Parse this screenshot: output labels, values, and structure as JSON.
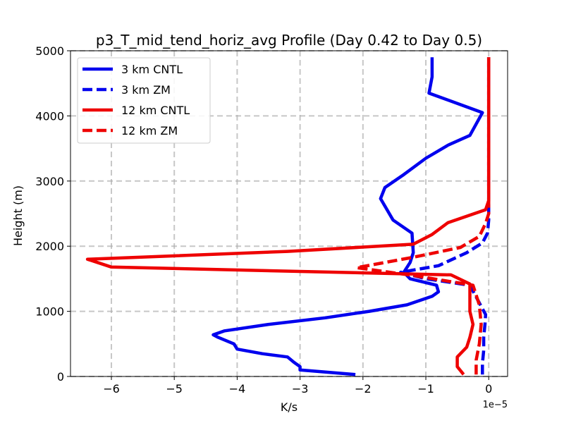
{
  "chart_data": {
    "type": "line",
    "title": "p3_T_mid_tend_horiz_avg Profile (Day 0.42 to Day 0.5)",
    "xlabel": "K/s",
    "ylabel": "Height (m)",
    "x_offset_label": "1e−5",
    "x_scale": 1e-05,
    "xlim": [
      -6.65,
      0.3
    ],
    "ylim": [
      0,
      5000
    ],
    "xticks": [
      -6,
      -5,
      -4,
      -3,
      -2,
      -1,
      0
    ],
    "xtick_labels": [
      "−6",
      "−5",
      "−4",
      "−3",
      "−2",
      "−1",
      "0"
    ],
    "yticks": [
      0,
      1000,
      2000,
      3000,
      4000,
      5000
    ],
    "ytick_labels": [
      "0",
      "1000",
      "2000",
      "3000",
      "4000",
      "5000"
    ],
    "grid": true,
    "legend_position": "top-left",
    "series": [
      {
        "name": "3 km CNTL",
        "color": "#0000ee",
        "dash": "solid",
        "x": [
          -2.12,
          -3.0,
          -3.0,
          -3.1,
          -3.2,
          -3.6,
          -4.0,
          -4.05,
          -4.3,
          -4.38,
          -4.2,
          -3.5,
          -2.6,
          -1.9,
          -1.3,
          -0.9,
          -0.8,
          -0.83,
          -1.25,
          -1.35,
          -1.25,
          -1.2,
          -1.22,
          -1.52,
          -1.72,
          -1.65,
          -1.35,
          -1.0,
          -0.65,
          -0.3,
          -0.1,
          -0.95,
          -0.9,
          -0.9
        ],
        "y": [
          30,
          100,
          150,
          220,
          300,
          350,
          420,
          500,
          600,
          640,
          700,
          800,
          900,
          1000,
          1100,
          1230,
          1300,
          1400,
          1500,
          1600,
          1750,
          1900,
          2200,
          2400,
          2730,
          2900,
          3100,
          3350,
          3550,
          3700,
          4050,
          4350,
          4600,
          4900
        ]
      },
      {
        "name": "3 km ZM",
        "color": "#0000ee",
        "dash": "dashed",
        "x": [
          -0.1,
          -0.1,
          -0.08,
          -0.08,
          -0.06,
          -0.05,
          -0.3,
          -1.0,
          -1.4,
          -0.8,
          -0.35,
          -0.1,
          -0.02,
          0.0,
          0.0,
          0.0
        ],
        "y": [
          30,
          200,
          400,
          600,
          800,
          950,
          1400,
          1500,
          1600,
          1700,
          1900,
          2050,
          2200,
          2400,
          3000,
          4900
        ]
      },
      {
        "name": "12 km CNTL",
        "color": "#ee0000",
        "dash": "solid",
        "x": [
          -0.4,
          -0.5,
          -0.5,
          -0.35,
          -0.3,
          -0.25,
          -0.3,
          -0.3,
          -0.3,
          -0.6,
          -6.0,
          -6.38,
          -3.2,
          -1.2,
          -0.9,
          -0.65,
          -0.05,
          0.0,
          0.0,
          0.0,
          0.0
        ],
        "y": [
          30,
          150,
          300,
          450,
          600,
          800,
          1000,
          1200,
          1420,
          1560,
          1680,
          1800,
          1920,
          2030,
          2180,
          2360,
          2560,
          2700,
          3200,
          4200,
          4900
        ]
      },
      {
        "name": "12 km ZM",
        "color": "#ee0000",
        "dash": "dashed",
        "x": [
          -0.2,
          -0.2,
          -0.15,
          -0.12,
          -0.15,
          -0.25,
          -1.2,
          -2.1,
          -1.2,
          -0.45,
          -0.15,
          -0.05,
          0.0,
          0.0
        ],
        "y": [
          30,
          250,
          500,
          800,
          1100,
          1400,
          1550,
          1670,
          1830,
          1980,
          2150,
          2350,
          2500,
          4900
        ]
      }
    ]
  }
}
